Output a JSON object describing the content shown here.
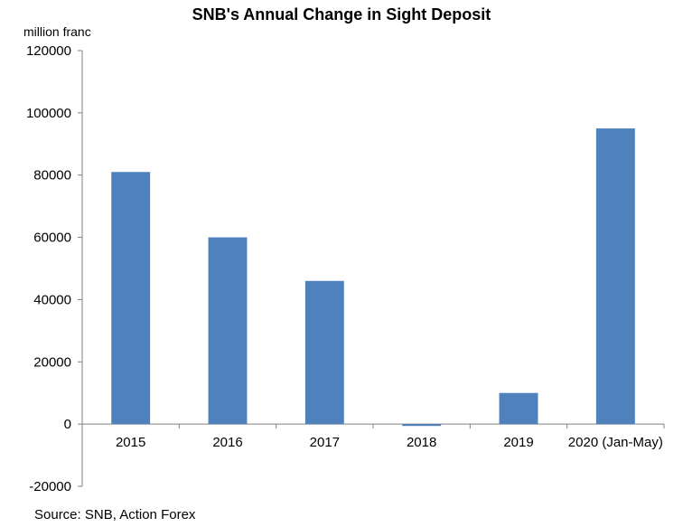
{
  "chart_data": {
    "type": "bar",
    "title": "SNB's Annual Change in Sight Deposit",
    "ylabel": "million franc",
    "xlabel": "",
    "categories": [
      "2015",
      "2016",
      "2017",
      "2018",
      "2019",
      "2020 (Jan-May)"
    ],
    "values": [
      81000,
      60000,
      46000,
      -600,
      10000,
      95000
    ],
    "ylim": [
      -20000,
      120000
    ],
    "yticks": [
      "120000",
      "100000",
      "80000",
      "60000",
      "40000",
      "20000",
      "0",
      "-20000"
    ],
    "grid": false,
    "bar_color": "#4F81BD",
    "source": "Source: SNB, Action Forex"
  }
}
